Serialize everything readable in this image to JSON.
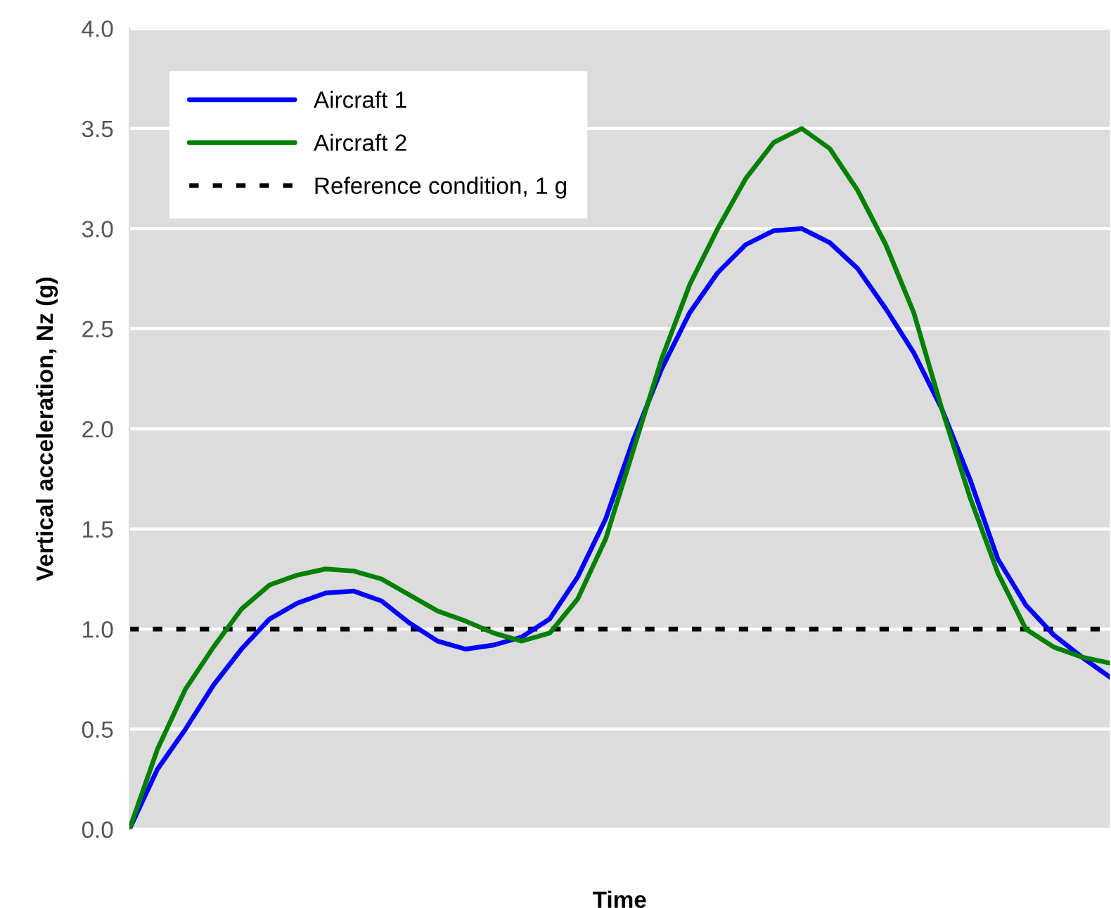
{
  "chart_data": {
    "type": "line",
    "xlabel": "Time",
    "ylabel": "Vertical acceleration, Nz (g)",
    "categories": [
      null,
      null,
      null,
      null,
      null,
      null,
      null,
      null,
      null,
      null,
      null,
      null,
      null,
      null,
      null,
      null,
      null,
      null,
      null,
      null,
      null,
      null,
      null,
      null,
      null,
      null,
      null,
      null,
      null,
      null,
      null,
      null,
      null,
      null,
      null,
      null
    ],
    "series": [
      {
        "name": "Aircraft 1",
        "color": "#0000ff",
        "values": [
          0.0,
          0.3,
          0.5,
          0.72,
          0.9,
          1.05,
          1.13,
          1.18,
          1.19,
          1.14,
          1.03,
          0.94,
          0.9,
          0.92,
          0.96,
          1.05,
          1.26,
          1.55,
          1.95,
          2.3,
          2.58,
          2.78,
          2.92,
          2.99,
          3.0,
          2.93,
          2.8,
          2.6,
          2.38,
          2.1,
          1.75,
          1.35,
          1.12,
          0.97,
          0.86,
          0.76
        ]
      },
      {
        "name": "Aircraft 2",
        "color": "#008000",
        "values": [
          0.0,
          0.4,
          0.7,
          0.91,
          1.1,
          1.22,
          1.27,
          1.3,
          1.29,
          1.25,
          1.17,
          1.09,
          1.04,
          0.98,
          0.94,
          0.98,
          1.15,
          1.45,
          1.9,
          2.35,
          2.72,
          3.0,
          3.25,
          3.43,
          3.5,
          3.4,
          3.19,
          2.92,
          2.58,
          2.1,
          1.66,
          1.28,
          1.0,
          0.91,
          0.86,
          0.83
        ]
      }
    ],
    "ref_lines": [
      {
        "axis": "y",
        "value": 1,
        "label": "Reference condition, 1 g",
        "color": "#000000",
        "line_style": "dotted"
      }
    ],
    "ylim": [
      0,
      4
    ],
    "yticks": [
      {
        "value": 0,
        "label": "0.0"
      },
      {
        "value": 0.5,
        "label": "0.5"
      },
      {
        "value": 1,
        "label": "1.0"
      },
      {
        "value": 1.5,
        "label": "1.5"
      },
      {
        "value": 2,
        "label": "2.0"
      },
      {
        "value": 2.5,
        "label": "2.5"
      },
      {
        "value": 3,
        "label": "3.0"
      },
      {
        "value": 3.5,
        "label": "3.5"
      },
      {
        "value": 4,
        "label": "4.0"
      }
    ],
    "grid": "y",
    "legend": "top left",
    "line_style": "solid",
    "marker": "none"
  }
}
